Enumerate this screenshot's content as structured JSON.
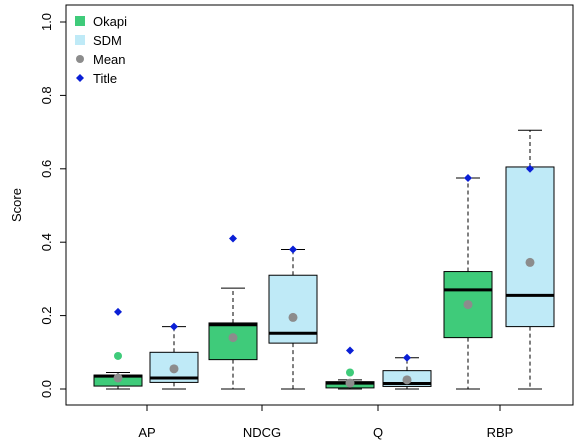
{
  "chart_data": {
    "type": "box",
    "categories": [
      "AP",
      "NDCG",
      "Q",
      "RBP"
    ],
    "ylabel": "Score",
    "ylim": [
      0.0,
      1.0
    ],
    "yticks": [
      "0.0",
      "0.2",
      "0.4",
      "0.6",
      "0.8",
      "1.0"
    ],
    "legend_position": "top-left",
    "legend": [
      {
        "label": "Okapi",
        "symbol": "square",
        "color": "#3fcb7a"
      },
      {
        "label": "SDM",
        "symbol": "square",
        "color": "#bfeaf7"
      },
      {
        "label": "Mean",
        "symbol": "circle",
        "color": "#8c8c8c"
      },
      {
        "label": "Title",
        "symbol": "diamond",
        "color": "#0a1fd6"
      }
    ],
    "series": [
      {
        "name": "Okapi",
        "color": "#3fcb7a",
        "boxes": [
          {
            "min": 0.0,
            "q1": 0.008,
            "median": 0.035,
            "q3": 0.038,
            "max": 0.045,
            "mean": 0.03,
            "title": 0.21,
            "outlier": 0.09
          },
          {
            "min": 0.0,
            "q1": 0.08,
            "median": 0.175,
            "q3": 0.18,
            "max": 0.275,
            "mean": 0.14,
            "title": 0.41
          },
          {
            "min": 0.0,
            "q1": 0.003,
            "median": 0.016,
            "q3": 0.02,
            "max": 0.025,
            "mean": 0.016,
            "title": 0.105,
            "outlier": 0.045
          },
          {
            "min": 0.0,
            "q1": 0.14,
            "median": 0.27,
            "q3": 0.32,
            "max": 0.575,
            "mean": 0.23,
            "title": 0.575
          }
        ]
      },
      {
        "name": "SDM",
        "color": "#bfeaf7",
        "boxes": [
          {
            "min": 0.0,
            "q1": 0.018,
            "median": 0.03,
            "q3": 0.1,
            "max": 0.17,
            "mean": 0.055,
            "title": 0.17
          },
          {
            "min": 0.0,
            "q1": 0.125,
            "median": 0.152,
            "q3": 0.31,
            "max": 0.38,
            "mean": 0.195,
            "title": 0.38
          },
          {
            "min": 0.0,
            "q1": 0.007,
            "median": 0.015,
            "q3": 0.05,
            "max": 0.085,
            "mean": 0.025,
            "title": 0.085
          },
          {
            "min": 0.0,
            "q1": 0.17,
            "median": 0.255,
            "q3": 0.605,
            "max": 0.705,
            "mean": 0.345,
            "title": 0.6
          }
        ]
      }
    ]
  }
}
